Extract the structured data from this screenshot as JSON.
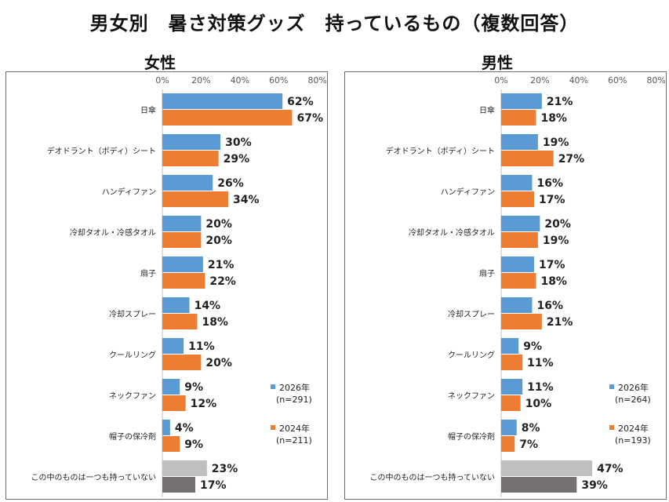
{
  "title": "男女別　暑さ対策グッズ　持っているもの（複数回答）",
  "chart_data": [
    {
      "type": "bar",
      "orientation": "horizontal",
      "title": "女性",
      "xlim": [
        0,
        80
      ],
      "xticks": [
        "0%",
        "20%",
        "40%",
        "60%",
        "80%"
      ],
      "value_suffix": "%",
      "categories": [
        "日傘",
        "デオドラント（ボディ）シート",
        "ハンディファン",
        "冷却タオル・冷感タオル",
        "扇子",
        "冷却スプレー",
        "クールリング",
        "ネックファン",
        "帽子の保冷剤",
        "この中のものは一つも持っていない"
      ],
      "series": [
        {
          "name": "2026年",
          "n": "(n=291)",
          "color": "#5b9bd5",
          "last_color": "#bfbfbf",
          "values": [
            62,
            30,
            26,
            20,
            21,
            14,
            11,
            9,
            4,
            23
          ]
        },
        {
          "name": "2024年",
          "n": "(n=211)",
          "color": "#ed7d31",
          "last_color": "#767171",
          "values": [
            67,
            29,
            34,
            20,
            22,
            18,
            20,
            12,
            9,
            17
          ]
        }
      ],
      "legend_position": "bottom-right"
    },
    {
      "type": "bar",
      "orientation": "horizontal",
      "title": "男性",
      "xlim": [
        0,
        80
      ],
      "xticks": [
        "0%",
        "20%",
        "40%",
        "60%",
        "80%"
      ],
      "value_suffix": "%",
      "categories": [
        "日傘",
        "デオドラント（ボディ）シート",
        "ハンディファン",
        "冷却タオル・冷感タオル",
        "扇子",
        "冷却スプレー",
        "クールリング",
        "ネックファン",
        "帽子の保冷剤",
        "この中のものは一つも持っていない"
      ],
      "series": [
        {
          "name": "2026年",
          "n": "(n=264)",
          "color": "#5b9bd5",
          "last_color": "#bfbfbf",
          "values": [
            21,
            19,
            16,
            20,
            17,
            16,
            9,
            11,
            8,
            47
          ]
        },
        {
          "name": "2024年",
          "n": "(n=193)",
          "color": "#ed7d31",
          "last_color": "#767171",
          "values": [
            18,
            27,
            17,
            19,
            18,
            21,
            11,
            10,
            7,
            39
          ]
        }
      ],
      "legend_position": "bottom-right"
    }
  ]
}
